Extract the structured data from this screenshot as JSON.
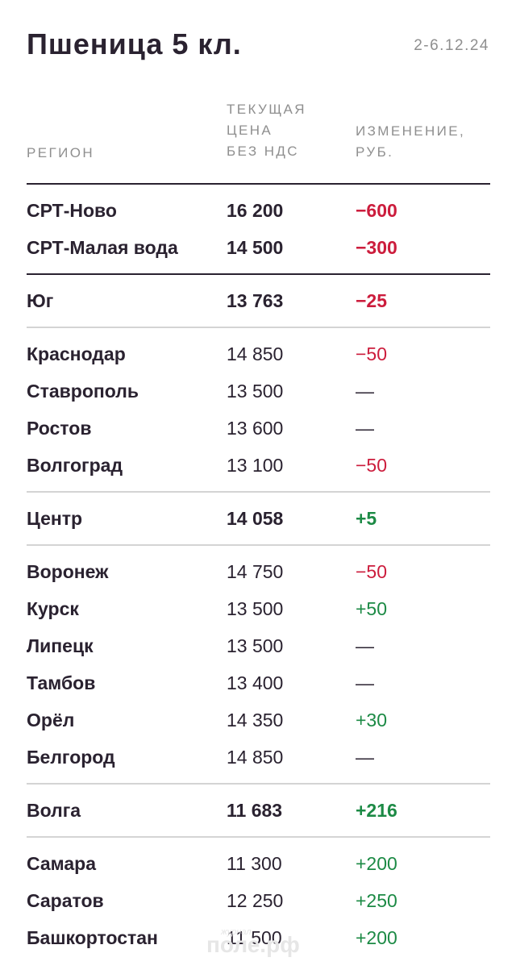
{
  "title": "Пшеница 5 кл.",
  "date": "2-6.12.24",
  "headers": {
    "region": "РЕГИОН",
    "price_lines": [
      "ТЕКУЩАЯ",
      "ЦЕНА",
      "БЕЗ НДС"
    ],
    "change_lines": [
      "ИЗМЕНЕНИЕ,",
      "РУБ."
    ]
  },
  "groups": [
    {
      "sep": "thick",
      "rows": [
        {
          "region": "СРТ-Ново",
          "price": "16 200",
          "change": "−600",
          "trend": "neg",
          "bold": true
        },
        {
          "region": "СРТ-Малая вода",
          "price": "14 500",
          "change": "−300",
          "trend": "neg",
          "bold": true
        }
      ]
    },
    {
      "sep": "thick",
      "rows": [
        {
          "region": "Юг",
          "price": "13 763",
          "change": "−25",
          "trend": "neg",
          "bold": true
        }
      ]
    },
    {
      "sep": "thin",
      "rows": [
        {
          "region": "Краснодар",
          "price": "14 850",
          "change": "−50",
          "trend": "neg",
          "bold": false
        },
        {
          "region": "Ставрополь",
          "price": "13 500",
          "change": "—",
          "trend": "none",
          "bold": false
        },
        {
          "region": "Ростов",
          "price": "13 600",
          "change": "—",
          "trend": "none",
          "bold": false
        },
        {
          "region": "Волгоград",
          "price": "13 100",
          "change": "−50",
          "trend": "neg",
          "bold": false
        }
      ]
    },
    {
      "sep": "thin",
      "rows": [
        {
          "region": "Центр",
          "price": "14 058",
          "change": "+5",
          "trend": "pos",
          "bold": true
        }
      ]
    },
    {
      "sep": "thin",
      "rows": [
        {
          "region": "Воронеж",
          "price": "14 750",
          "change": "−50",
          "trend": "neg",
          "bold": false
        },
        {
          "region": "Курск",
          "price": "13 500",
          "change": "+50",
          "trend": "pos",
          "bold": false
        },
        {
          "region": "Липецк",
          "price": "13 500",
          "change": "—",
          "trend": "none",
          "bold": false
        },
        {
          "region": "Тамбов",
          "price": "13 400",
          "change": "—",
          "trend": "none",
          "bold": false
        },
        {
          "region": "Орёл",
          "price": "14 350",
          "change": "+30",
          "trend": "pos",
          "bold": false
        },
        {
          "region": "Белгород",
          "price": "14 850",
          "change": "—",
          "trend": "none",
          "bold": false
        }
      ]
    },
    {
      "sep": "thin",
      "rows": [
        {
          "region": "Волга",
          "price": "11 683",
          "change": "+216",
          "trend": "pos",
          "bold": true
        }
      ]
    },
    {
      "sep": "thin",
      "rows": [
        {
          "region": "Самара",
          "price": "11 300",
          "change": "+200",
          "trend": "pos",
          "bold": false
        },
        {
          "region": "Саратов",
          "price": "12 250",
          "change": "+250",
          "trend": "pos",
          "bold": false
        },
        {
          "region": "Башкортостан",
          "price": "11 500",
          "change": "+200",
          "trend": "pos",
          "bold": false
        }
      ]
    }
  ],
  "colors": {
    "negative": "#cc1c3c",
    "positive": "#1c8a45",
    "text": "#2a2230",
    "muted": "#8f8f8f"
  },
  "watermark": {
    "small": "журнал",
    "big": "поле.рф"
  }
}
